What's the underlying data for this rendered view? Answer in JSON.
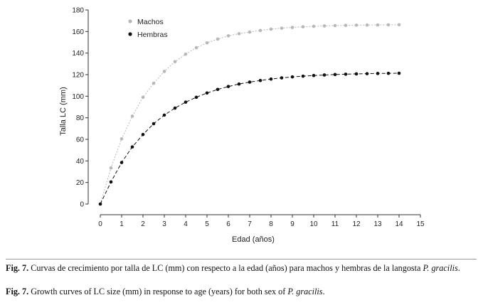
{
  "chart_data": {
    "type": "line",
    "xlabel": "Edad (años)",
    "ylabel": "Talla LC (mm)",
    "xlim": [
      0,
      15
    ],
    "ylim": [
      0,
      180
    ],
    "xticks": [
      "0",
      "1",
      "2",
      "3",
      "4",
      "5",
      "6",
      "7",
      "8",
      "9",
      "10",
      "11",
      "12",
      "13",
      "14",
      "15"
    ],
    "yticks": [
      "0",
      "20",
      "40",
      "60",
      "80",
      "100",
      "120",
      "140",
      "160",
      "180"
    ],
    "legend_position": "top-left",
    "series": [
      {
        "name": "Machos",
        "color": "#b8b8b8",
        "style": "dotted",
        "x": [
          0,
          0.5,
          1,
          1.5,
          2,
          2.5,
          3,
          3.5,
          4,
          4.5,
          5,
          5.5,
          6,
          6.5,
          7,
          7.5,
          8,
          8.5,
          9,
          9.5,
          10,
          10.5,
          11,
          11.5,
          12,
          12.5,
          13,
          13.5,
          14
        ],
        "values": [
          0,
          33.5,
          60.5,
          81.5,
          99,
          112,
          123,
          132,
          139,
          145,
          149.5,
          153,
          156,
          158,
          159.5,
          161,
          162.2,
          163.1,
          163.8,
          164.4,
          164.8,
          165.2,
          165.5,
          165.7,
          165.9,
          166,
          166.1,
          166.2,
          166.3
        ]
      },
      {
        "name": "Hembras",
        "color": "#111111",
        "style": "dashed",
        "x": [
          0,
          0.5,
          1,
          1.5,
          2,
          2.5,
          3,
          3.5,
          4,
          4.5,
          5,
          5.5,
          6,
          6.5,
          7,
          7.5,
          8,
          8.5,
          9,
          9.5,
          10,
          10.5,
          11,
          11.5,
          12,
          12.5,
          13,
          13.5,
          14
        ],
        "values": [
          0,
          20.5,
          38.5,
          53,
          64.5,
          74.5,
          82.5,
          89,
          94.5,
          99,
          103,
          106.3,
          109,
          111.3,
          113.1,
          114.6,
          115.9,
          117,
          117.9,
          118.6,
          119.2,
          119.7,
          120.1,
          120.4,
          120.7,
          120.9,
          121.1,
          121.2,
          121.3
        ]
      }
    ]
  },
  "caption": {
    "es_label": "Fig. 7.",
    "es_text": " Curvas de crecimiento por talla de LC (mm) con respecto a la edad (años) para machos y hembras de la langosta ",
    "es_species": "P. gracilis",
    "es_end": ".",
    "en_label": "Fig. 7.",
    "en_text": " Growth curves of LC size (mm) in response to age (years) for both sex of ",
    "en_species": "P. gracilis",
    "en_end": "."
  }
}
